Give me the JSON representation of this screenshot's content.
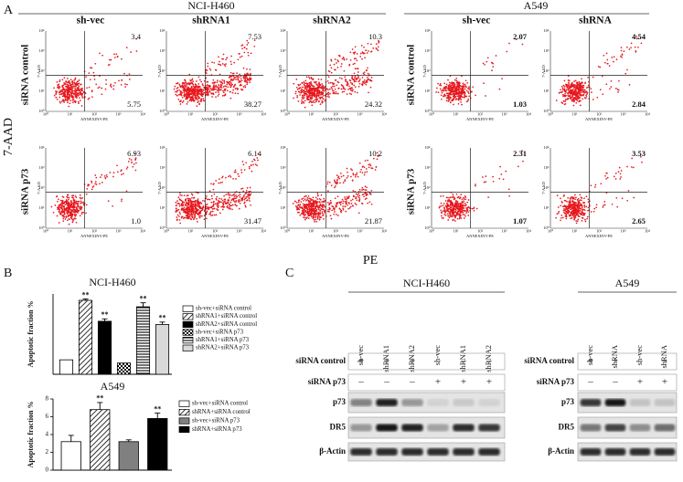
{
  "panel_a": {
    "label": "A",
    "y_axis_label": "7-AAD",
    "x_axis_label": "PE",
    "plot_x_label": "ANNEXINV-PE",
    "plot_y_label": "7-AAD",
    "tick_labels": [
      "10⁰",
      "10¹",
      "10²",
      "10³",
      "10⁴"
    ],
    "groups": [
      {
        "title": "NCI-H460",
        "columns": [
          "sh-vec",
          "shRNA1",
          "shRNA2"
        ],
        "rows": [
          "siRNA control",
          "siRNA  p73"
        ],
        "plots": [
          [
            {
              "upper_right": "3.4",
              "lower_right": "5.75"
            },
            {
              "upper_right": "7.53",
              "lower_right": "38.27"
            },
            {
              "upper_right": "10.3",
              "lower_right": "24.32"
            }
          ],
          [
            {
              "upper_right": "6.93",
              "lower_right": "1.0"
            },
            {
              "upper_right": "6.14",
              "lower_right": "31.47"
            },
            {
              "upper_right": "10.2",
              "lower_right": "21.87"
            }
          ]
        ]
      },
      {
        "title": "A549",
        "columns": [
          "sh-vec",
          "shRNA"
        ],
        "rows": [
          "siRNA control",
          "siRNA  p73"
        ],
        "plots": [
          [
            {
              "upper_right": "2.07",
              "lower_right": "1.03"
            },
            {
              "upper_right": "4.54",
              "lower_right": "2.84"
            }
          ],
          [
            {
              "upper_right": "2.31",
              "lower_right": "1.07"
            },
            {
              "upper_right": "3.53",
              "lower_right": "2.65"
            }
          ]
        ]
      }
    ]
  },
  "panel_b": {
    "label": "B",
    "charts": [
      {
        "type": "bar",
        "title": "NCI-H460",
        "y_label": "Apoptotic fraction %",
        "ylim": [
          0,
          50
        ],
        "series": [
          {
            "name": "sh-vec+siRNA control",
            "color": "#ffffff",
            "values": [
              9
            ],
            "errors": [
              0
            ]
          },
          {
            "name": "shRNA1+siRNA control",
            "color": "#ffffff",
            "pattern": "diagonal",
            "values": [
              46
            ],
            "errors": [
              0.8
            ],
            "annotation": "**"
          },
          {
            "name": "shRNA2+siRNA control",
            "color": "#000000",
            "values": [
              33
            ],
            "errors": [
              1.5
            ],
            "annotation": "**"
          },
          {
            "name": "sh-vec+siRNA p73",
            "color": "#ffffff",
            "pattern": "checker",
            "values": [
              7
            ],
            "errors": [
              0
            ]
          },
          {
            "name": "shRNA1+siRNA p73",
            "color": "#ffffff",
            "pattern": "horizontal",
            "values": [
              42
            ],
            "errors": [
              2.5
            ],
            "annotation": "**"
          },
          {
            "name": "shRNA2+siRNA p73",
            "color": "#d9d9d9",
            "values": [
              31
            ],
            "errors": [
              1.5
            ],
            "annotation": "**"
          }
        ]
      },
      {
        "type": "bar",
        "title": "A549",
        "y_label": "Apoptotic fraction %",
        "ylim": [
          0,
          8
        ],
        "yticks": [
          0,
          2,
          4,
          6,
          8
        ],
        "series": [
          {
            "name": "sh-vec+siRNA control",
            "color": "#ffffff",
            "values": [
              3.2
            ],
            "errors": [
              0.7
            ]
          },
          {
            "name": "shRNA+siRNA control",
            "color": "#ffffff",
            "pattern": "diagonal",
            "values": [
              6.8
            ],
            "errors": [
              0.8
            ],
            "annotation": "**"
          },
          {
            "name": "sh-vec+siRNA p73",
            "color": "#808080",
            "values": [
              3.2
            ],
            "errors": [
              0.2
            ]
          },
          {
            "name": "shRNA+siRNA p73",
            "color": "#000000",
            "values": [
              5.8
            ],
            "errors": [
              0.6
            ],
            "annotation": "**"
          }
        ]
      }
    ]
  },
  "panel_c": {
    "label": "C",
    "blots": [
      {
        "title": "NCI-H460",
        "lanes": [
          "sh-vec",
          "shRNA1",
          "shRNA2",
          "sh-vec",
          "shRNA1",
          "shRNA2"
        ],
        "conditions": [
          {
            "name": "siRNA control",
            "signs": [
              "+",
              "+",
              "+",
              "–",
              "–",
              "–"
            ]
          },
          {
            "name": "siRNA p73",
            "signs": [
              "–",
              "–",
              "–",
              "+",
              "+",
              "+"
            ]
          }
        ],
        "proteins": [
          "p73",
          "DR5",
          "β-Actin"
        ]
      },
      {
        "title": "A549",
        "lanes": [
          "sh-vec",
          "shRNA",
          "sh-vec",
          "shRNA"
        ],
        "conditions": [
          {
            "name": "siRNA control",
            "signs": [
              "+",
              "+",
              "–",
              "–"
            ]
          },
          {
            "name": "siRNA p73",
            "signs": [
              "–",
              "–",
              "+",
              "+"
            ]
          }
        ],
        "proteins": [
          "p73",
          "DR5",
          "β-Actin"
        ]
      }
    ]
  }
}
